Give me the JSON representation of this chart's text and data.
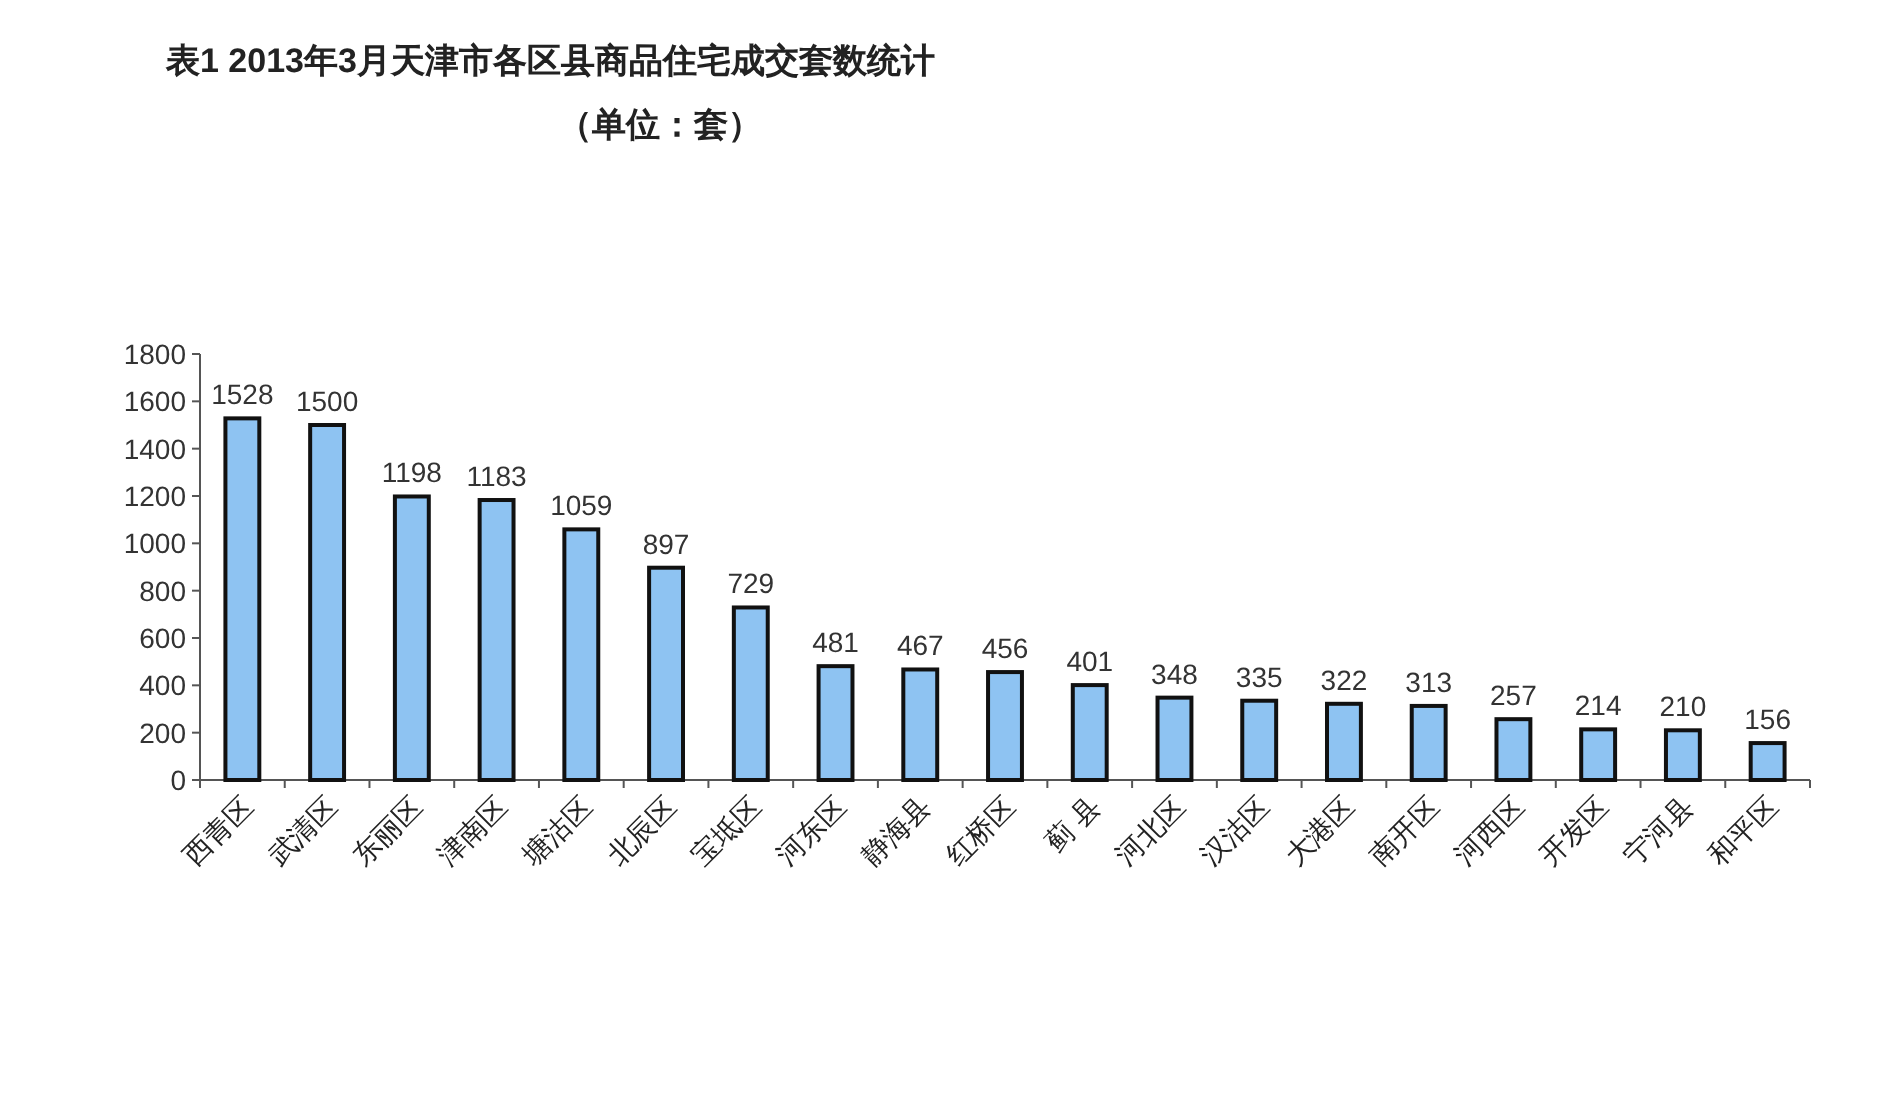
{
  "chart_data": {
    "type": "bar",
    "title": "表1 2013年3月天津市各区县商品住宅成交套数统计",
    "subtitle": "（单位：套）",
    "categories": [
      "西青区",
      "武清区",
      "东丽区",
      "津南区",
      "塘沽区",
      "北辰区",
      "宝坻区",
      "河东区",
      "静海县",
      "红桥区",
      "蓟 县",
      "河北区",
      "汉沽区",
      "大港区",
      "南开区",
      "河西区",
      "开发区",
      "宁河县",
      "和平区"
    ],
    "values": [
      1528,
      1500,
      1198,
      1183,
      1059,
      897,
      729,
      481,
      467,
      456,
      401,
      348,
      335,
      322,
      313,
      257,
      214,
      210,
      156
    ],
    "color": "#8ec3f2",
    "ylim": [
      0,
      1800
    ],
    "yticks": [
      0,
      200,
      400,
      600,
      800,
      1000,
      1200,
      1400,
      1600,
      1800
    ],
    "data_labels": true
  }
}
